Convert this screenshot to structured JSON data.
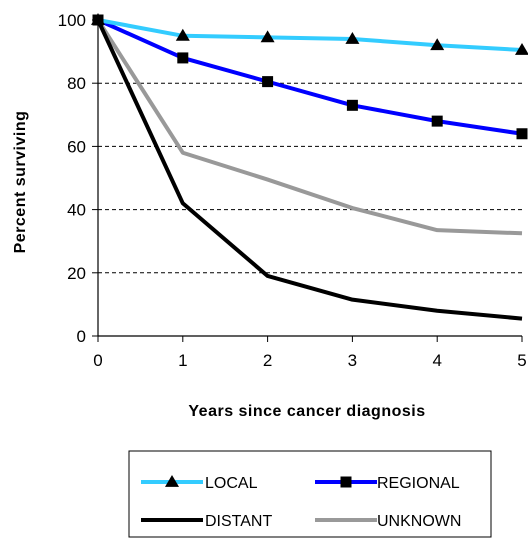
{
  "chart_data": {
    "type": "line",
    "xlabel": "Years since cancer diagnosis",
    "ylabel": "Percent surviving",
    "x": [
      0,
      1,
      2,
      3,
      4,
      5
    ],
    "xlim": [
      0,
      5
    ],
    "ylim": [
      0,
      100
    ],
    "yticks": [
      0,
      20,
      40,
      60,
      80,
      100
    ],
    "xticks": [
      0,
      1,
      2,
      3,
      4,
      5
    ],
    "grid": "horizontal dashed",
    "legend_position": "bottom",
    "series": [
      {
        "name": "LOCAL",
        "values": [
          100,
          95,
          94.5,
          94,
          92,
          90.5
        ],
        "color": "#33ccff",
        "marker": "triangle"
      },
      {
        "name": "REGIONAL",
        "values": [
          100,
          88,
          80.5,
          73,
          68,
          64
        ],
        "color": "#0000ff",
        "marker": "square"
      },
      {
        "name": "DISTANT",
        "values": [
          100,
          42,
          19,
          11.5,
          8,
          5.5
        ],
        "color": "#000000",
        "marker": "none"
      },
      {
        "name": "UNKNOWN",
        "values": [
          100,
          58,
          49.5,
          40.5,
          33.5,
          32.5
        ],
        "color": "#999999",
        "marker": "none"
      }
    ]
  }
}
